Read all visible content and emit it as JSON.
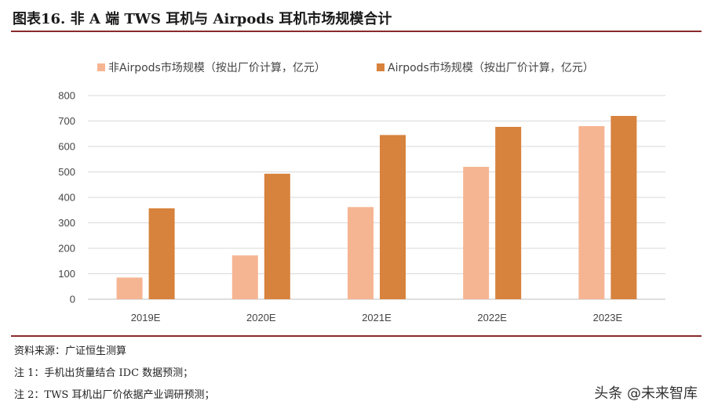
{
  "header": {
    "title": "图表16.  非 A 端 TWS 耳机与 Airpods 耳机市场规模合计"
  },
  "chart_data": {
    "type": "bar",
    "categories": [
      "2019E",
      "2020E",
      "2021E",
      "2022E",
      "2023E"
    ],
    "series": [
      {
        "name": "非Airpods市场规模（按出厂价计算，亿元）",
        "values": [
          85,
          172,
          362,
          520,
          680
        ],
        "color": "#f6b592"
      },
      {
        "name": "Airpods市场规模（按出厂价计算，亿元）",
        "values": [
          357,
          493,
          645,
          677,
          720
        ],
        "color": "#d7823d"
      }
    ],
    "yticks": [
      0,
      100,
      200,
      300,
      400,
      500,
      600,
      700,
      800
    ],
    "ylim": [
      0,
      800
    ],
    "grid": true,
    "legend": "top",
    "title": "",
    "xlabel": "",
    "ylabel": ""
  },
  "footer": {
    "source": "资料来源：广证恒生测算",
    "note1": "注 1：手机出货量结合 IDC 数据预测；",
    "note2": "注 2：TWS 耳机出厂价依据产业调研预测；"
  },
  "watermark": "头条 @未来智库"
}
